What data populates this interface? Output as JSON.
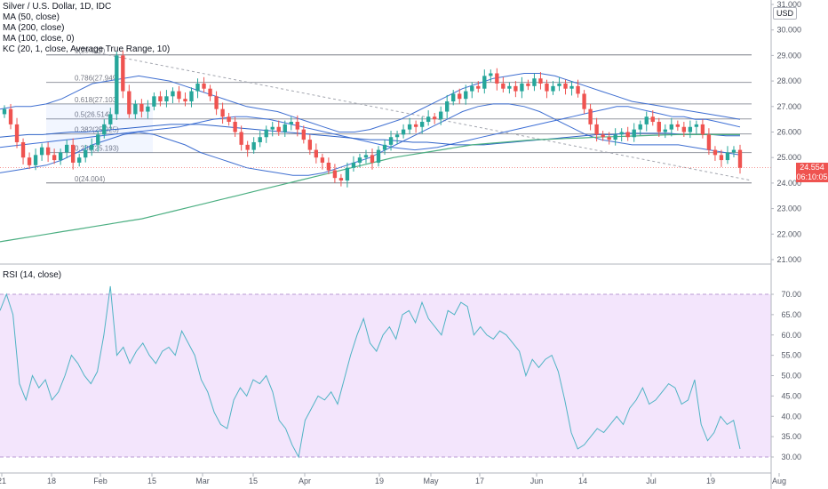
{
  "header": {
    "title": "Silver / U.S. Dollar, 1D, IDC",
    "indicators": [
      "MA (50, close)",
      "MA (200, close)",
      "MA (100, close, 0)",
      "KC (20, 1, close, Average True Range, 10)"
    ],
    "currency": "USD",
    "last_price": "24.554",
    "countdown": "06:10:05"
  },
  "rsi_panel": {
    "title": "RSI (14, close)"
  },
  "chart_data": [
    {
      "type": "candlestick",
      "y_ticks": [
        "31.000",
        "30.000",
        "29.000",
        "28.000",
        "27.000",
        "26.000",
        "25.000",
        "24.000",
        "23.000",
        "22.000",
        "21.000"
      ],
      "ylim": [
        21,
        31
      ],
      "x_ticks": [
        "21",
        "18",
        "Feb",
        "15",
        "Mar",
        "15",
        "Apr",
        "19",
        "May",
        "17",
        "Jun",
        "14",
        "Jul",
        "19",
        "Aug"
      ],
      "fib_levels": [
        {
          "label": "1(29.023)",
          "value": 29.023
        },
        {
          "label": "0.786(27.949)",
          "value": 27.949
        },
        {
          "label": "0.618(27.103)",
          "value": 27.103
        },
        {
          "label": "0.5(26.514)",
          "value": 26.514
        },
        {
          "label": "0.382(25.925)",
          "value": 25.925
        },
        {
          "label": "0.236(25.193)",
          "value": 25.193
        },
        {
          "label": "0(24.004)",
          "value": 24.004
        }
      ],
      "closes": [
        26.9,
        26.3,
        25.6,
        25.0,
        24.7,
        25.1,
        25.4,
        25.1,
        24.9,
        25.2,
        25.5,
        24.8,
        25.0,
        25.3,
        25.5,
        25.9,
        26.3,
        26.7,
        29.0,
        27.6,
        26.7,
        27.1,
        26.8,
        27.0,
        27.4,
        27.2,
        27.4,
        27.6,
        27.3,
        27.2,
        27.6,
        27.9,
        27.7,
        27.4,
        26.9,
        26.6,
        26.4,
        26.0,
        25.5,
        25.3,
        25.6,
        25.8,
        26.1,
        26.2,
        26.0,
        26.3,
        26.4,
        26.1,
        25.7,
        25.3,
        25.0,
        24.8,
        24.5,
        24.2,
        24.1,
        24.6,
        24.8,
        25.0,
        25.1,
        24.8,
        25.3,
        25.5,
        25.8,
        25.9,
        26.1,
        26.3,
        26.2,
        26.4,
        26.6,
        26.5,
        26.8,
        27.2,
        27.5,
        27.3,
        27.6,
        27.8,
        27.7,
        28.2,
        28.3,
        27.9,
        27.7,
        27.8,
        27.6,
        27.9,
        27.8,
        28.1,
        27.9,
        27.6,
        27.8,
        27.9,
        27.7,
        27.8,
        27.5,
        26.9,
        26.3,
        25.9,
        25.8,
        25.7,
        25.9,
        26.0,
        25.8,
        26.1,
        26.3,
        26.6,
        26.4,
        26.0,
        26.1,
        26.3,
        26.2,
        26.0,
        26.2,
        26.3,
        25.9,
        25.3,
        25.1,
        24.9,
        25.2,
        25.3,
        24.6
      ],
      "ma50": [
        25.4,
        25.45,
        25.5,
        25.55,
        25.6,
        25.65,
        25.7,
        25.75,
        25.8,
        25.85,
        25.9,
        25.95,
        26.0,
        26.05,
        26.1,
        26.15,
        26.2,
        26.3,
        26.4,
        26.5,
        26.55,
        26.6,
        26.6,
        26.55,
        26.5,
        26.4,
        26.3,
        26.2,
        26.1,
        26.0,
        25.9,
        25.8,
        25.7,
        25.6,
        25.5,
        25.4,
        25.35,
        25.3,
        25.35,
        25.4,
        25.5,
        25.6,
        25.7,
        25.8,
        25.9,
        26.0,
        26.1,
        26.2,
        26.3,
        26.4,
        26.5,
        26.6,
        26.7,
        26.8,
        26.9,
        27.0,
        27.0,
        26.9,
        26.8,
        26.7,
        26.6,
        26.6,
        26.5,
        26.5,
        26.4,
        26.3,
        26.2
      ],
      "ma100": [
        25.8,
        25.85,
        25.9,
        25.9,
        25.95,
        26.0,
        26.0,
        26.05,
        26.1,
        26.15,
        26.2,
        26.25,
        26.3,
        26.3,
        26.3,
        26.25,
        26.2,
        26.15,
        26.1,
        26.05,
        26.0,
        25.95,
        25.9,
        25.85,
        25.8,
        25.75,
        25.7,
        25.7,
        25.65,
        25.6,
        25.6,
        25.55,
        25.5,
        25.5,
        25.5,
        25.55,
        25.6,
        25.65,
        25.7,
        25.75,
        25.8,
        25.85,
        25.9,
        25.9,
        25.95,
        25.95,
        25.95,
        25.95,
        25.9,
        25.9,
        25.9,
        25.85,
        25.85
      ],
      "ma200": [
        21.7,
        21.8,
        21.9,
        22.0,
        22.1,
        22.2,
        22.3,
        22.4,
        22.5,
        22.6,
        22.75,
        22.9,
        23.05,
        23.2,
        23.35,
        23.5,
        23.65,
        23.8,
        23.95,
        24.1,
        24.25,
        24.4,
        24.55,
        24.7,
        24.85,
        25.0,
        25.1,
        25.2,
        25.3,
        25.4,
        25.5,
        25.55,
        25.6,
        25.65,
        25.7,
        25.72,
        25.75,
        25.77,
        25.8,
        25.82,
        25.84,
        25.86,
        25.88,
        25.9,
        25.9,
        25.9,
        25.9,
        25.9
      ],
      "kc_upper": [
        26.9,
        27.0,
        27.0,
        27.1,
        27.3,
        27.6,
        27.9,
        28.0,
        28.1,
        28.2,
        28.1,
        28.0,
        27.8,
        27.6,
        27.4,
        27.2,
        27.0,
        26.9,
        26.8,
        26.6,
        26.4,
        26.2,
        26.0,
        26.0,
        26.1,
        26.3,
        26.5,
        26.8,
        27.1,
        27.4,
        27.7,
        27.9,
        28.1,
        28.2,
        28.3,
        28.3,
        28.2,
        28.0,
        27.8,
        27.6,
        27.4,
        27.2,
        27.1,
        27.0,
        26.9,
        26.8,
        26.7,
        26.6,
        26.5
      ],
      "kc_lower": [
        24.4,
        24.5,
        24.6,
        24.7,
        24.9,
        25.2,
        25.5,
        25.7,
        25.9,
        26.0,
        25.9,
        25.7,
        25.5,
        25.2,
        25.0,
        24.8,
        24.6,
        24.5,
        24.4,
        24.3,
        24.3,
        24.4,
        24.6,
        24.8,
        25.0,
        25.3,
        25.6,
        25.9,
        26.2,
        26.5,
        26.8,
        27.0,
        27.1,
        27.1,
        27.0,
        26.8,
        26.5,
        26.2,
        25.9,
        25.7,
        25.6,
        25.5,
        25.5,
        25.5,
        25.5,
        25.4,
        25.3,
        25.2,
        25.1
      ],
      "trendline": {
        "start": 29.1,
        "end": 24.1
      }
    },
    {
      "type": "line",
      "title": "RSI (14, close)",
      "y_ticks": [
        "70.00",
        "65.00",
        "60.00",
        "55.00",
        "50.00",
        "45.00",
        "40.00",
        "35.00",
        "30.00"
      ],
      "ylim": [
        30,
        70
      ],
      "band": [
        30,
        70
      ],
      "values": [
        66,
        70,
        65,
        48,
        44,
        50,
        47,
        49,
        44,
        46,
        50,
        55,
        53,
        50,
        48,
        51,
        60,
        72,
        55,
        57,
        53,
        56,
        58,
        55,
        53,
        56,
        57,
        55,
        61,
        58,
        55,
        49,
        46,
        41,
        38,
        37,
        44,
        47,
        45,
        49,
        48,
        50,
        46,
        39,
        37,
        33,
        30,
        39,
        42,
        45,
        44,
        46,
        43,
        49,
        55,
        60,
        64,
        58,
        56,
        60,
        62,
        59,
        65,
        66,
        63,
        68,
        64,
        62,
        60,
        66,
        65,
        68,
        67,
        60,
        62,
        60,
        59,
        61,
        60,
        58,
        56,
        50,
        54,
        52,
        54,
        55,
        51,
        44,
        36,
        32,
        33,
        35,
        37,
        36,
        38,
        40,
        38,
        42,
        44,
        47,
        43,
        44,
        46,
        48,
        47,
        43,
        44,
        49,
        38,
        34,
        36,
        40,
        38,
        39,
        32
      ]
    }
  ]
}
